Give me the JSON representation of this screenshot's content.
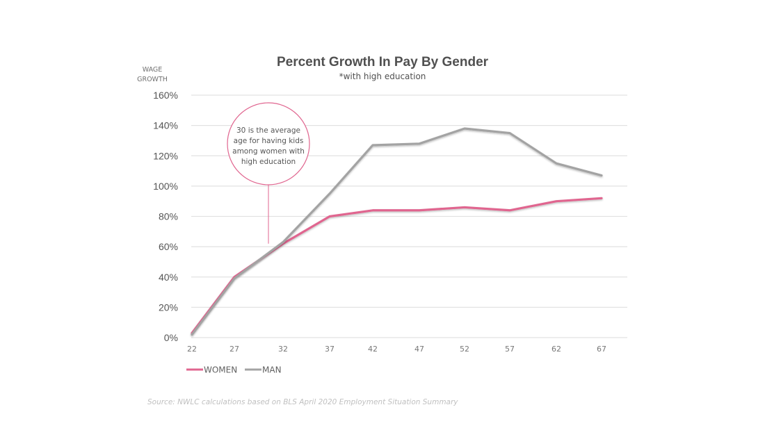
{
  "chart_data": {
    "type": "line",
    "title": "Percent Growth In Pay By Gender",
    "subtitle": "*with high education",
    "ylabel_lines": [
      "WAGE",
      "GROWTH"
    ],
    "xlabel": "",
    "ylim": [
      0,
      160
    ],
    "yticks": [
      0,
      20,
      40,
      60,
      80,
      100,
      120,
      140,
      160
    ],
    "ytick_labels": [
      "0%",
      "20%",
      "40%",
      "60%",
      "80%",
      "100%",
      "120%",
      "140%",
      "160%"
    ],
    "x": [
      22,
      27,
      32,
      37,
      42,
      47,
      52,
      57,
      62,
      67
    ],
    "xtick_labels": [
      "22",
      "27",
      "32",
      "37",
      "42",
      "47",
      "52",
      "57",
      "62",
      "67"
    ],
    "grid": true,
    "legend_position": "bottom-left",
    "series": [
      {
        "name": "WOMEN",
        "color": "#e0658f",
        "values": [
          3,
          40,
          62,
          80,
          84,
          84,
          86,
          84,
          90,
          92
        ]
      },
      {
        "name": "MAN",
        "color": "#a3a3a3",
        "values": [
          2,
          39,
          63,
          95,
          127,
          128,
          138,
          135,
          115,
          107
        ]
      }
    ],
    "annotations": [
      {
        "x": 32,
        "lines": [
          "30 is the average",
          "age for having kids",
          "among women with",
          "high education"
        ],
        "color": "#e0658f"
      }
    ],
    "source": "Source: NWLC calculations based on BLS April 2020 Employment Situation Summary"
  }
}
